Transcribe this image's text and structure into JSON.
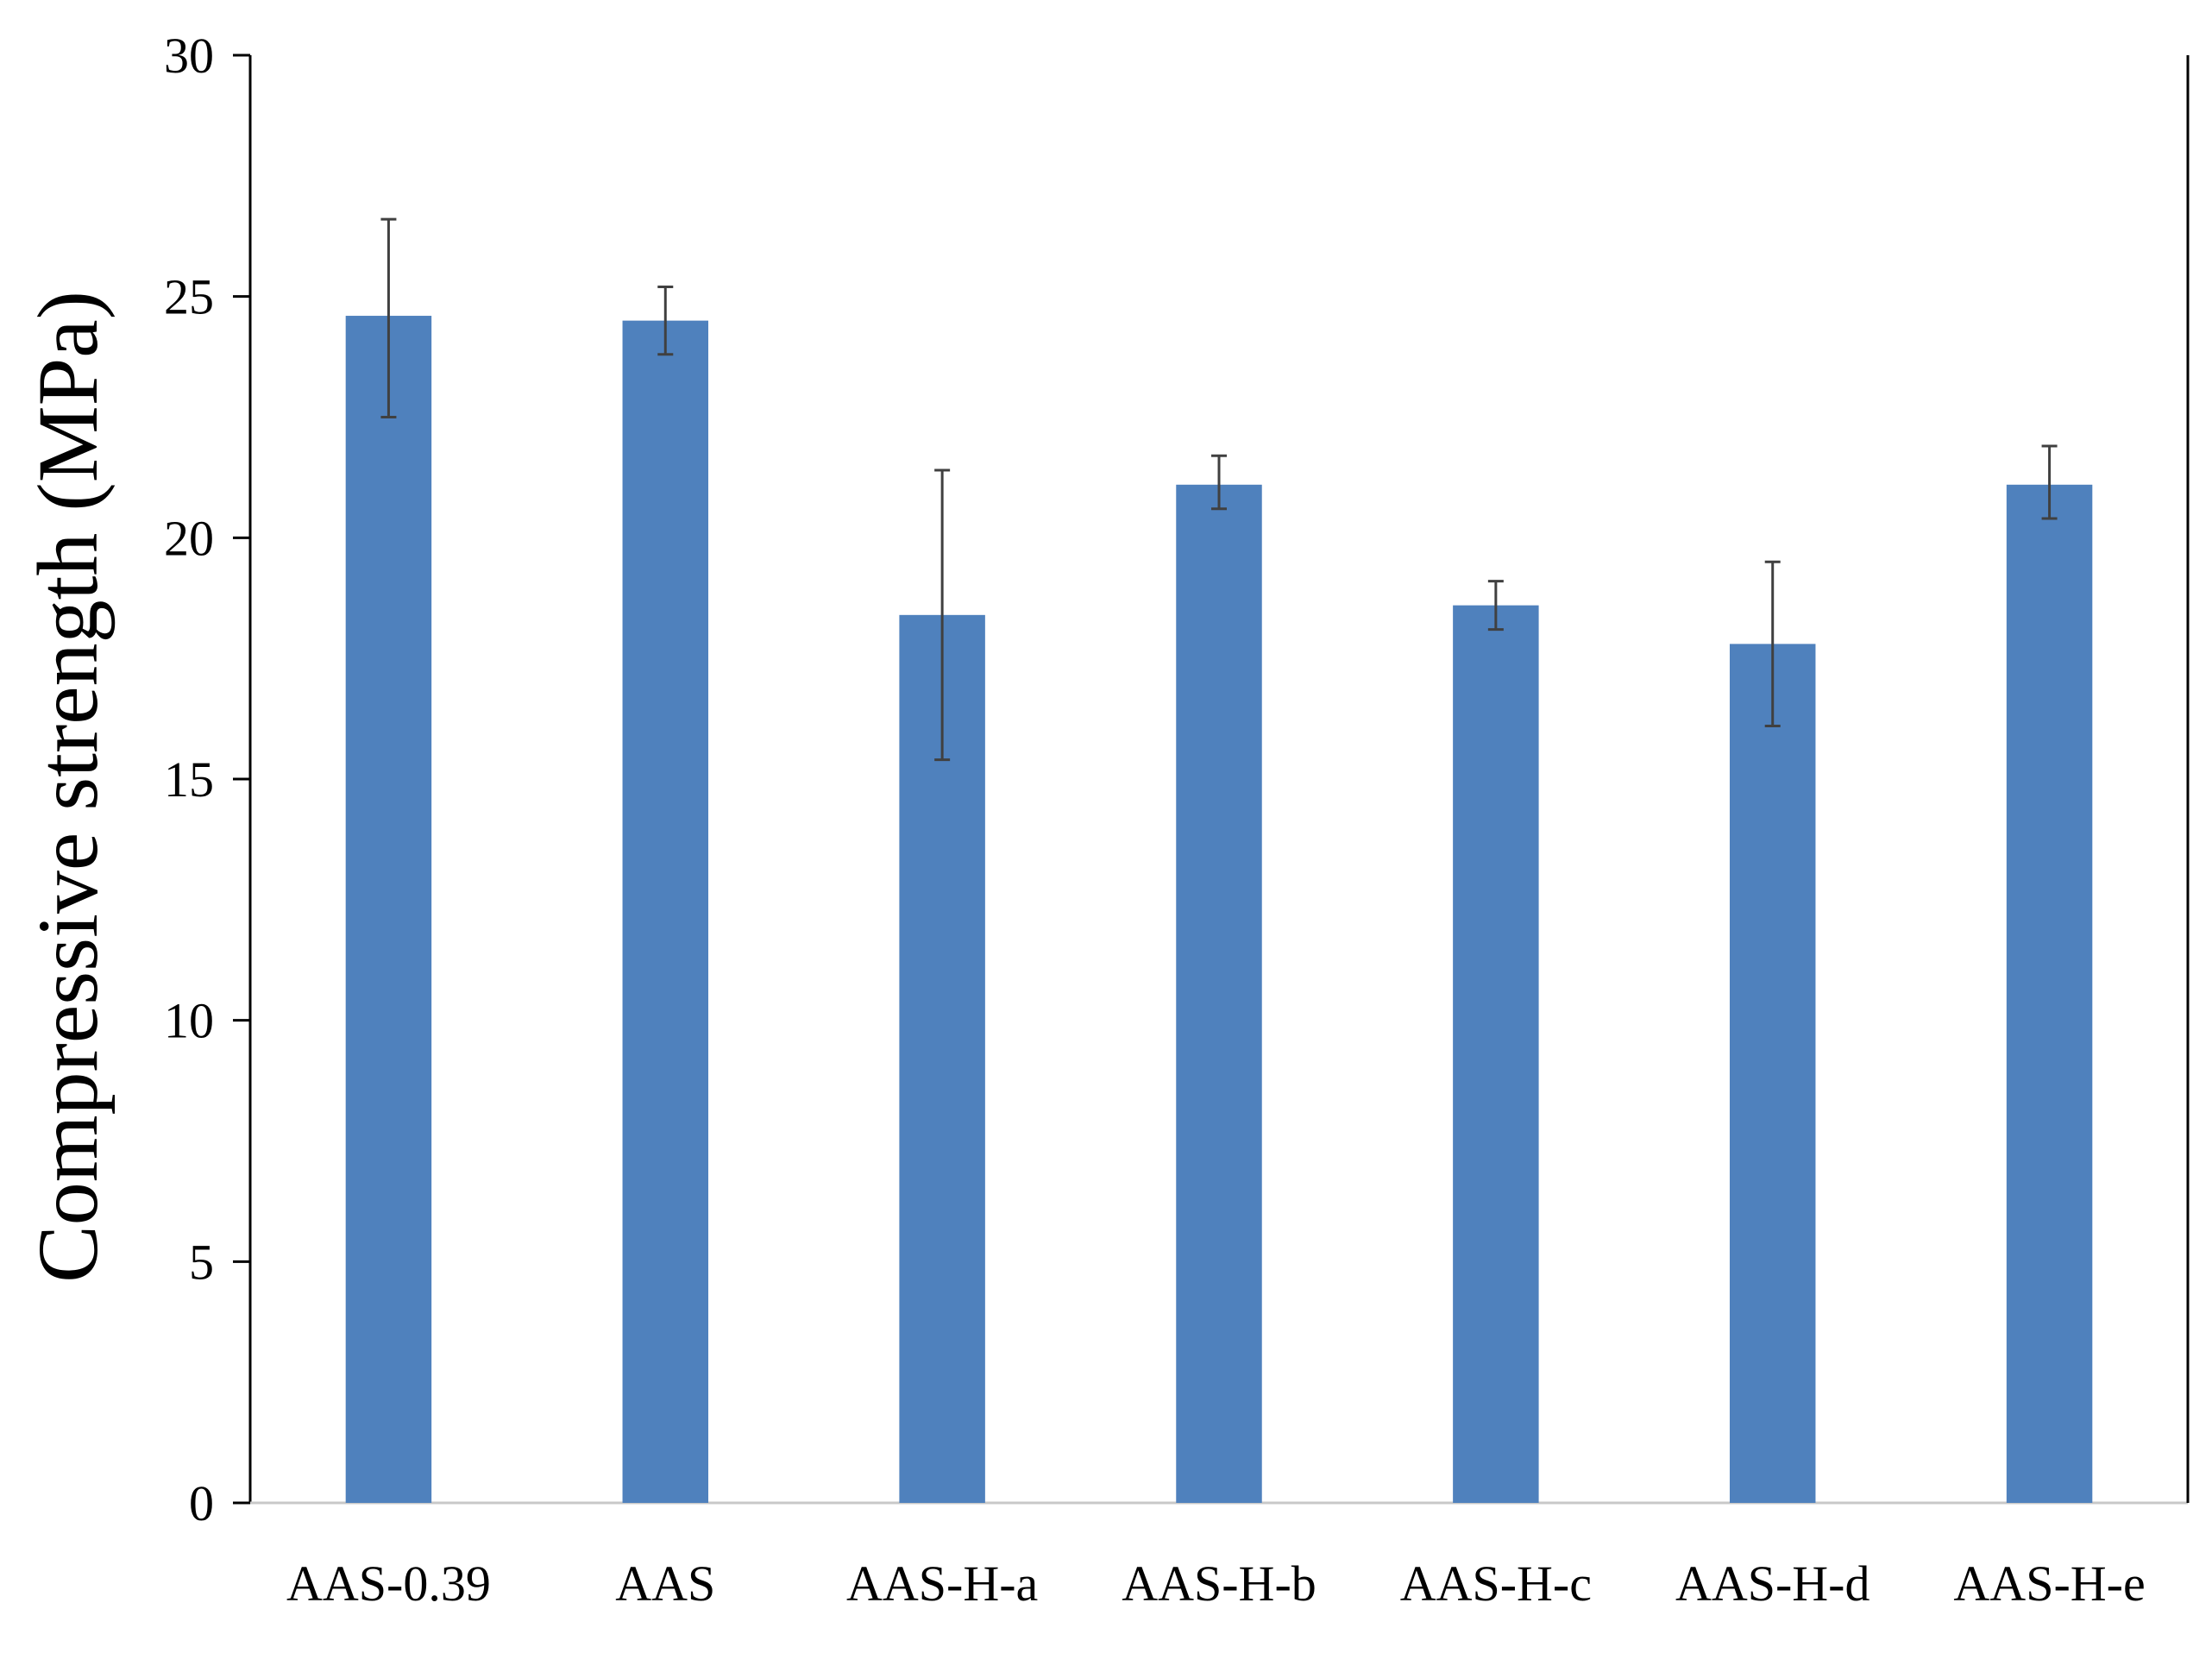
{
  "chart_data": {
    "type": "bar",
    "title": "",
    "xlabel": "",
    "ylabel": "Compressive strength (MPa)",
    "ylim": [
      0,
      30
    ],
    "yticks": [
      0,
      5,
      10,
      15,
      20,
      25,
      30
    ],
    "categories": [
      "AAS-0.39",
      "AAS",
      "AAS-H-a",
      "AAS-H-b",
      "AAS-H-c",
      "AAS-H-d",
      "AAS-H-e"
    ],
    "values": [
      24.6,
      24.5,
      18.4,
      21.1,
      18.6,
      17.8,
      21.1
    ],
    "error_low": [
      22.5,
      23.8,
      15.4,
      20.6,
      18.1,
      16.1,
      20.4
    ],
    "error_high": [
      26.6,
      25.2,
      21.4,
      21.7,
      19.1,
      19.5,
      21.9
    ],
    "bar_color": "#4F81BD",
    "error_bar_color": "#404040",
    "grid": false,
    "legend": "none"
  }
}
